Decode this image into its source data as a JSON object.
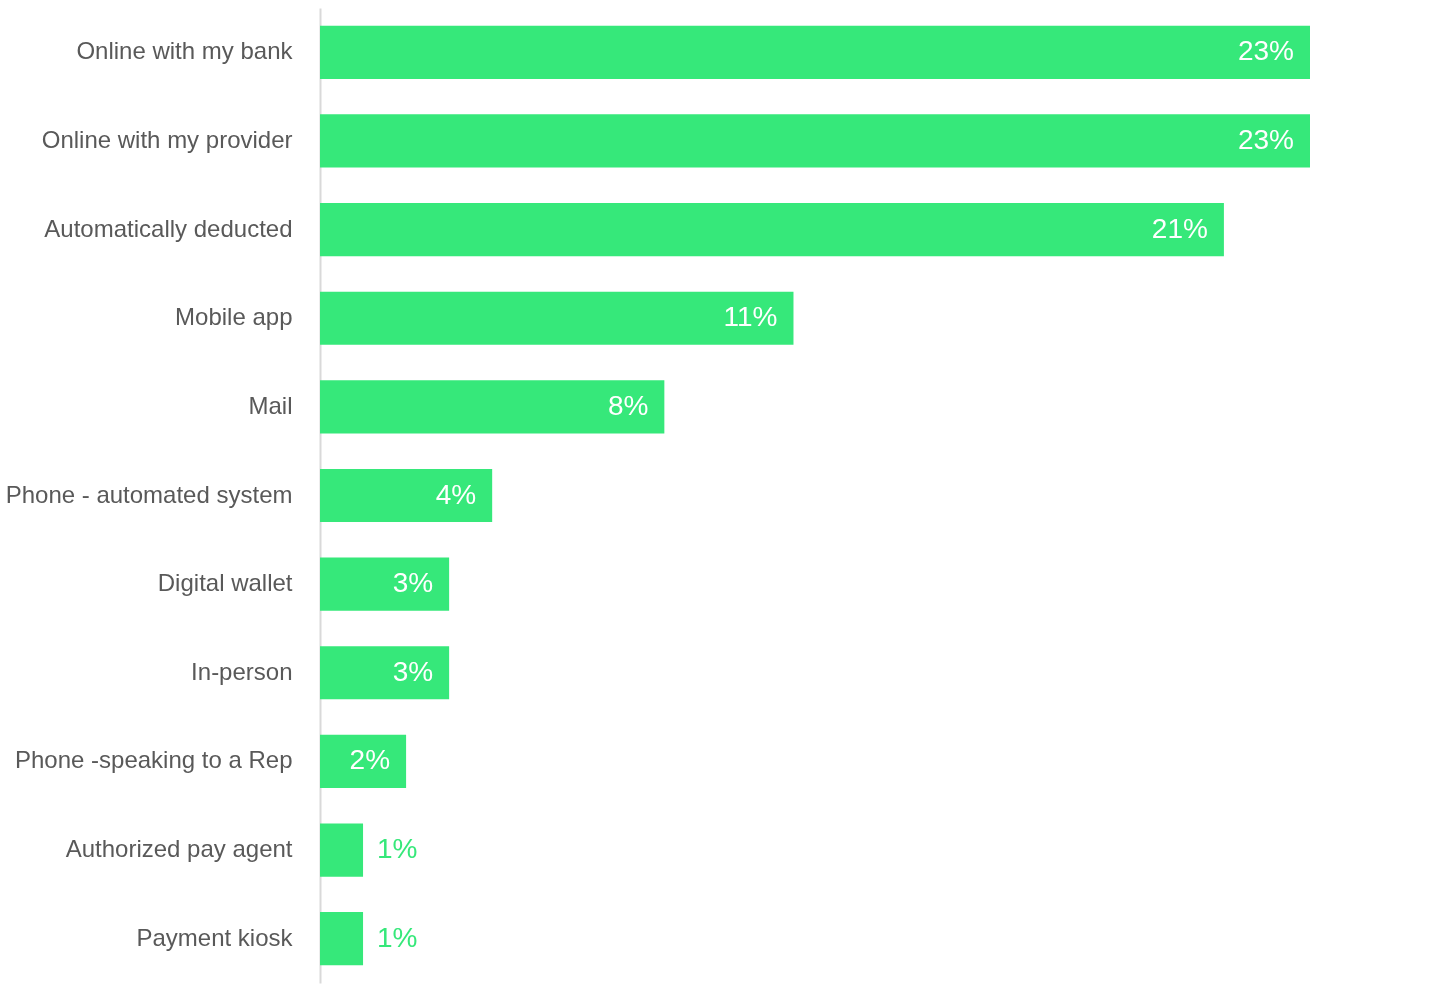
{
  "chart_data": {
    "type": "bar",
    "orientation": "horizontal",
    "categories": [
      "Online with my bank",
      "Online with my provider",
      "Automatically deducted",
      "Mobile app",
      "Mail",
      "Phone - automated system",
      "Digital wallet",
      "In-person",
      "Phone -speaking to a Rep",
      "Authorized pay agent",
      "Payment kiosk"
    ],
    "values": [
      23,
      23,
      21,
      11,
      8,
      4,
      3,
      3,
      2,
      1,
      1
    ],
    "value_labels": [
      "23%",
      "23%",
      "21%",
      "11%",
      "8%",
      "4%",
      "3%",
      "3%",
      "2%",
      "1%",
      "1%"
    ],
    "color": "#36e87a",
    "grid": false,
    "tick_labels": "y"
  }
}
